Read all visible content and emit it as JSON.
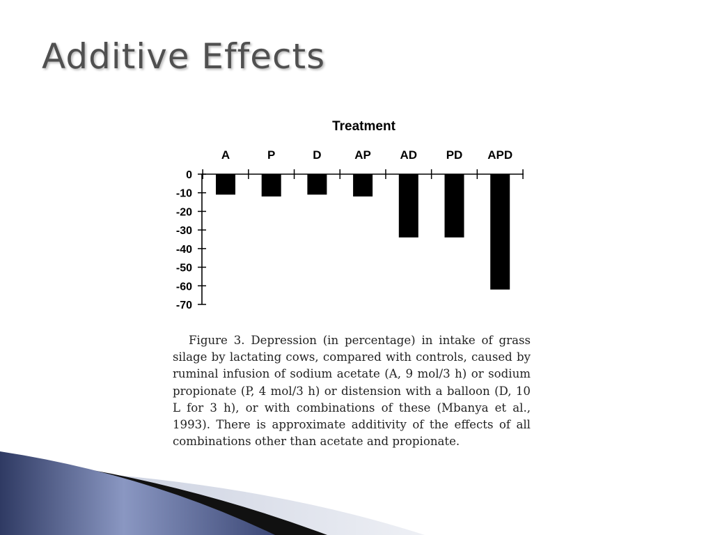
{
  "slide": {
    "title": "Additive Effects",
    "caption": "Figure 3. Depression (in percentage) in intake of grass silage by lactating cows, compared with controls, caused by ruminal infusion of sodium acetate (A, 9 mol/3 h) or sodium propionate (P, 4 mol/3 h) or distension with a balloon (D, 10 L for 3 h), or with combinations of these (Mbanya et al., 1993). There is approximate additivity of the effects of all combinations other than acetate and propionate."
  },
  "colors": {
    "title": "#505050",
    "bar": "#000000",
    "decor_dark": "#2f3a63",
    "decor_light": "#8a97c2"
  },
  "chart_data": {
    "type": "bar",
    "title": "Treatment",
    "categories": [
      "A",
      "P",
      "D",
      "AP",
      "AD",
      "PD",
      "APD"
    ],
    "values": [
      -11,
      -12,
      -11,
      -12,
      -34,
      -34,
      -62
    ],
    "ylim": [
      -70,
      0
    ],
    "yticks": [
      0,
      -10,
      -20,
      -30,
      -40,
      -50,
      -60,
      -70
    ],
    "ytick_labels": [
      "0",
      "-10",
      "-20",
      "-30",
      "-40",
      "-50",
      "-60",
      "-70"
    ],
    "xlabel": "",
    "ylabel": "",
    "category_axis_position": "top",
    "grid": false,
    "legend": "none"
  }
}
